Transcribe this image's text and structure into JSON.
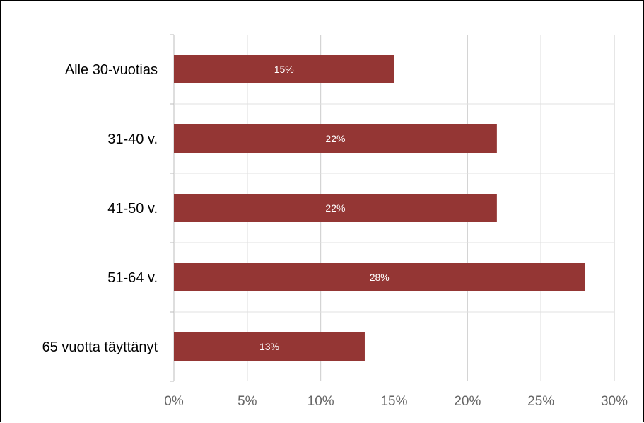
{
  "chart_data": {
    "type": "bar",
    "orientation": "horizontal",
    "categories": [
      "Alle 30-vuotias",
      "31-40 v.",
      "41-50 v.",
      "51-64 v.",
      "65 vuotta täyttänyt"
    ],
    "values": [
      15,
      22,
      22,
      28,
      13
    ],
    "data_labels": [
      "15%",
      "22%",
      "22%",
      "28%",
      "13%"
    ],
    "xlim": [
      0,
      30
    ],
    "x_ticks": [
      0,
      5,
      10,
      15,
      20,
      25,
      30
    ],
    "x_tick_labels": [
      "0%",
      "5%",
      "10%",
      "15%",
      "20%",
      "25%",
      "30%"
    ],
    "grid": true,
    "legend": "none",
    "bar_color": "#943634",
    "title": "",
    "xlabel": "",
    "ylabel": ""
  }
}
